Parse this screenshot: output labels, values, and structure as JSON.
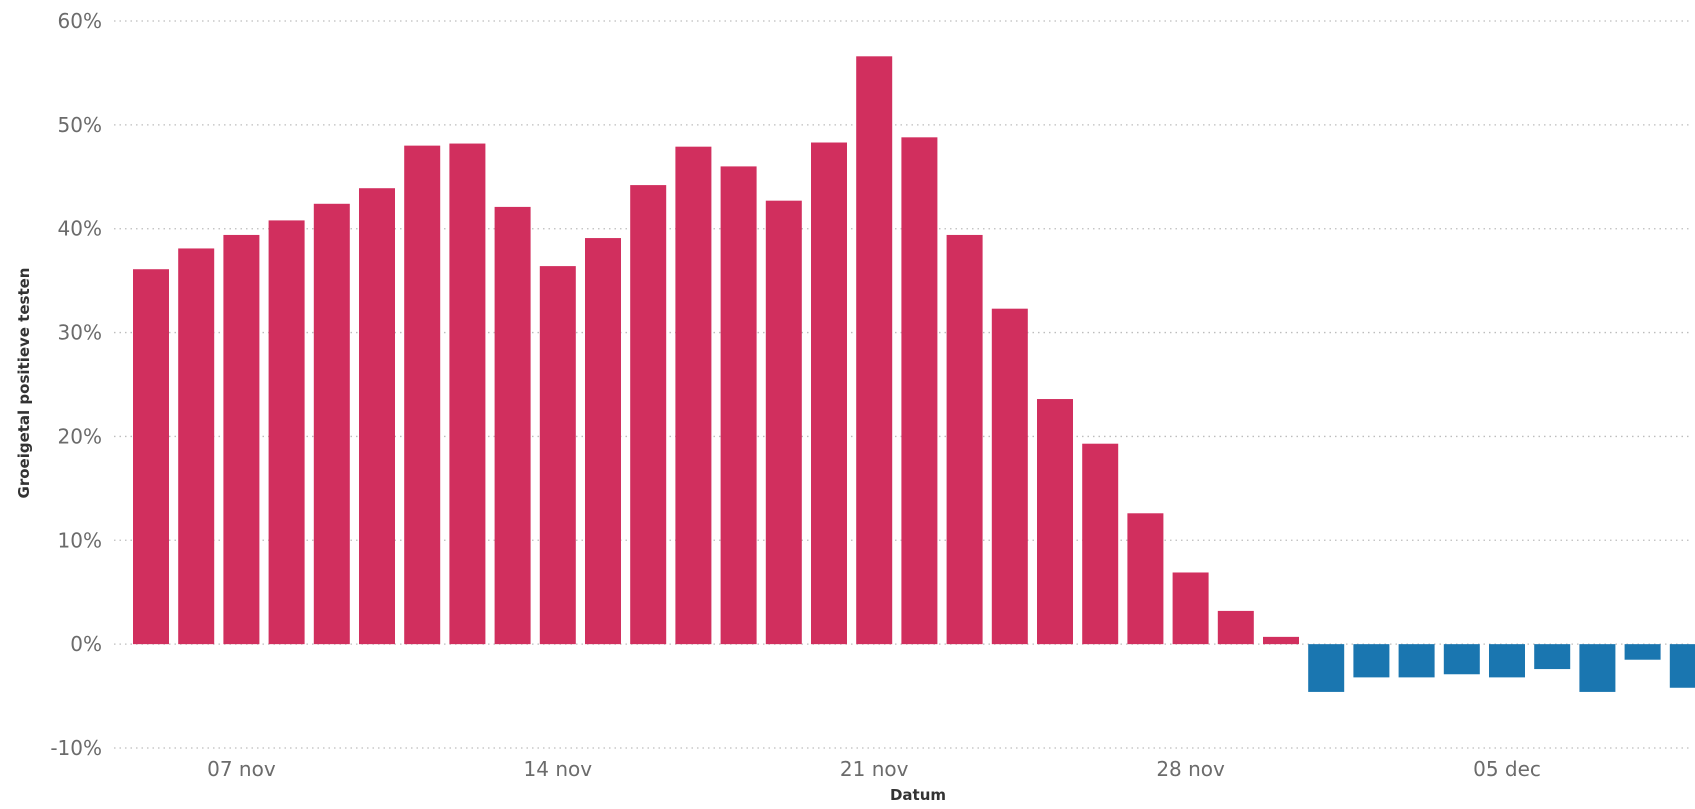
{
  "chart_data": {
    "type": "bar",
    "xlabel": "Datum",
    "ylabel": "Groeigetal positieve testen",
    "ylim": [
      -10,
      60
    ],
    "y_ticks": [
      60,
      50,
      40,
      30,
      20,
      10,
      0,
      -10
    ],
    "y_tick_labels": [
      "60%",
      "50%",
      "40%",
      "30%",
      "20%",
      "10%",
      "0%",
      "-10%"
    ],
    "x_tick_labels": [
      {
        "label": "07 nov",
        "category": 2
      },
      {
        "label": "14 nov",
        "category": 9
      },
      {
        "label": "21 nov",
        "category": 16
      },
      {
        "label": "28 nov",
        "category": 23
      },
      {
        "label": "05 dec",
        "category": 30
      }
    ],
    "grid": true,
    "colors": {
      "positive": "#d12f5e",
      "negative": "#1a76b0"
    },
    "values": [
      36.1,
      38.1,
      39.4,
      40.8,
      42.4,
      43.9,
      48.0,
      48.2,
      42.1,
      36.4,
      39.1,
      44.2,
      47.9,
      46.0,
      42.7,
      48.3,
      56.6,
      48.8,
      39.4,
      32.3,
      23.6,
      19.3,
      12.6,
      6.9,
      3.2,
      0.7,
      -4.6,
      -3.2,
      -3.2,
      -2.9,
      -3.2,
      -2.4,
      -4.6,
      -1.5,
      -4.2
    ]
  }
}
